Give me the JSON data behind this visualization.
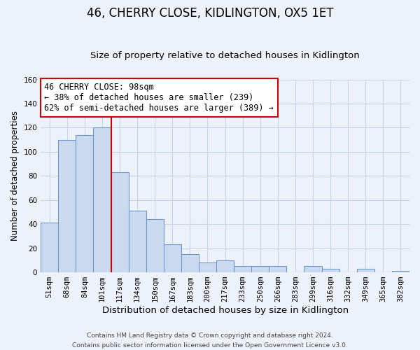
{
  "title": "46, CHERRY CLOSE, KIDLINGTON, OX5 1ET",
  "subtitle": "Size of property relative to detached houses in Kidlington",
  "xlabel": "Distribution of detached houses by size in Kidlington",
  "ylabel": "Number of detached properties",
  "categories": [
    "51sqm",
    "68sqm",
    "84sqm",
    "101sqm",
    "117sqm",
    "134sqm",
    "150sqm",
    "167sqm",
    "183sqm",
    "200sqm",
    "217sqm",
    "233sqm",
    "250sqm",
    "266sqm",
    "283sqm",
    "299sqm",
    "316sqm",
    "332sqm",
    "349sqm",
    "365sqm",
    "382sqm"
  ],
  "values": [
    41,
    110,
    114,
    120,
    83,
    51,
    44,
    23,
    15,
    8,
    10,
    5,
    5,
    5,
    0,
    5,
    3,
    0,
    3,
    0,
    1
  ],
  "bar_color": "#cad9ef",
  "bar_edge_color": "#7098c8",
  "vline_color": "#cc0000",
  "vline_x": 3.5,
  "annotation_text": "46 CHERRY CLOSE: 98sqm\n← 38% of detached houses are smaller (239)\n62% of semi-detached houses are larger (389) →",
  "annotation_box_facecolor": "#ffffff",
  "annotation_box_edgecolor": "#cc0000",
  "ylim": [
    0,
    160
  ],
  "yticks": [
    0,
    20,
    40,
    60,
    80,
    100,
    120,
    140,
    160
  ],
  "grid_color": "#c8d4e8",
  "bg_color": "#edf2fa",
  "footer": "Contains HM Land Registry data © Crown copyright and database right 2024.\nContains public sector information licensed under the Open Government Licence v3.0.",
  "title_fontsize": 12,
  "subtitle_fontsize": 9.5,
  "xlabel_fontsize": 9.5,
  "ylabel_fontsize": 8.5,
  "tick_fontsize": 7.5,
  "annotation_fontsize": 8.5,
  "footer_fontsize": 6.5
}
